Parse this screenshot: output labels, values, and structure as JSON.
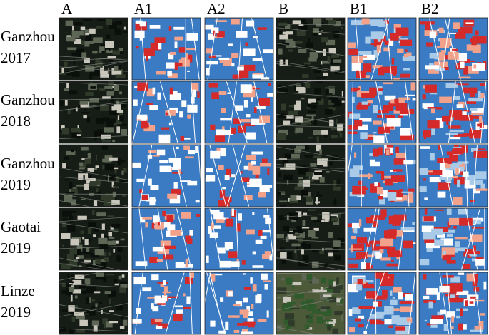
{
  "columns": [
    "A",
    "A1",
    "A2",
    "B",
    "B1",
    "B2"
  ],
  "rows": [
    {
      "label": [
        "Ganzhou",
        "2017"
      ]
    },
    {
      "label": [
        "Ganzhou",
        "2018"
      ]
    },
    {
      "label": [
        "Ganzhou",
        "2019"
      ]
    },
    {
      "label": [
        "Gaotai",
        "2019"
      ]
    },
    {
      "label": [
        "Linze",
        "2019"
      ]
    }
  ]
}
